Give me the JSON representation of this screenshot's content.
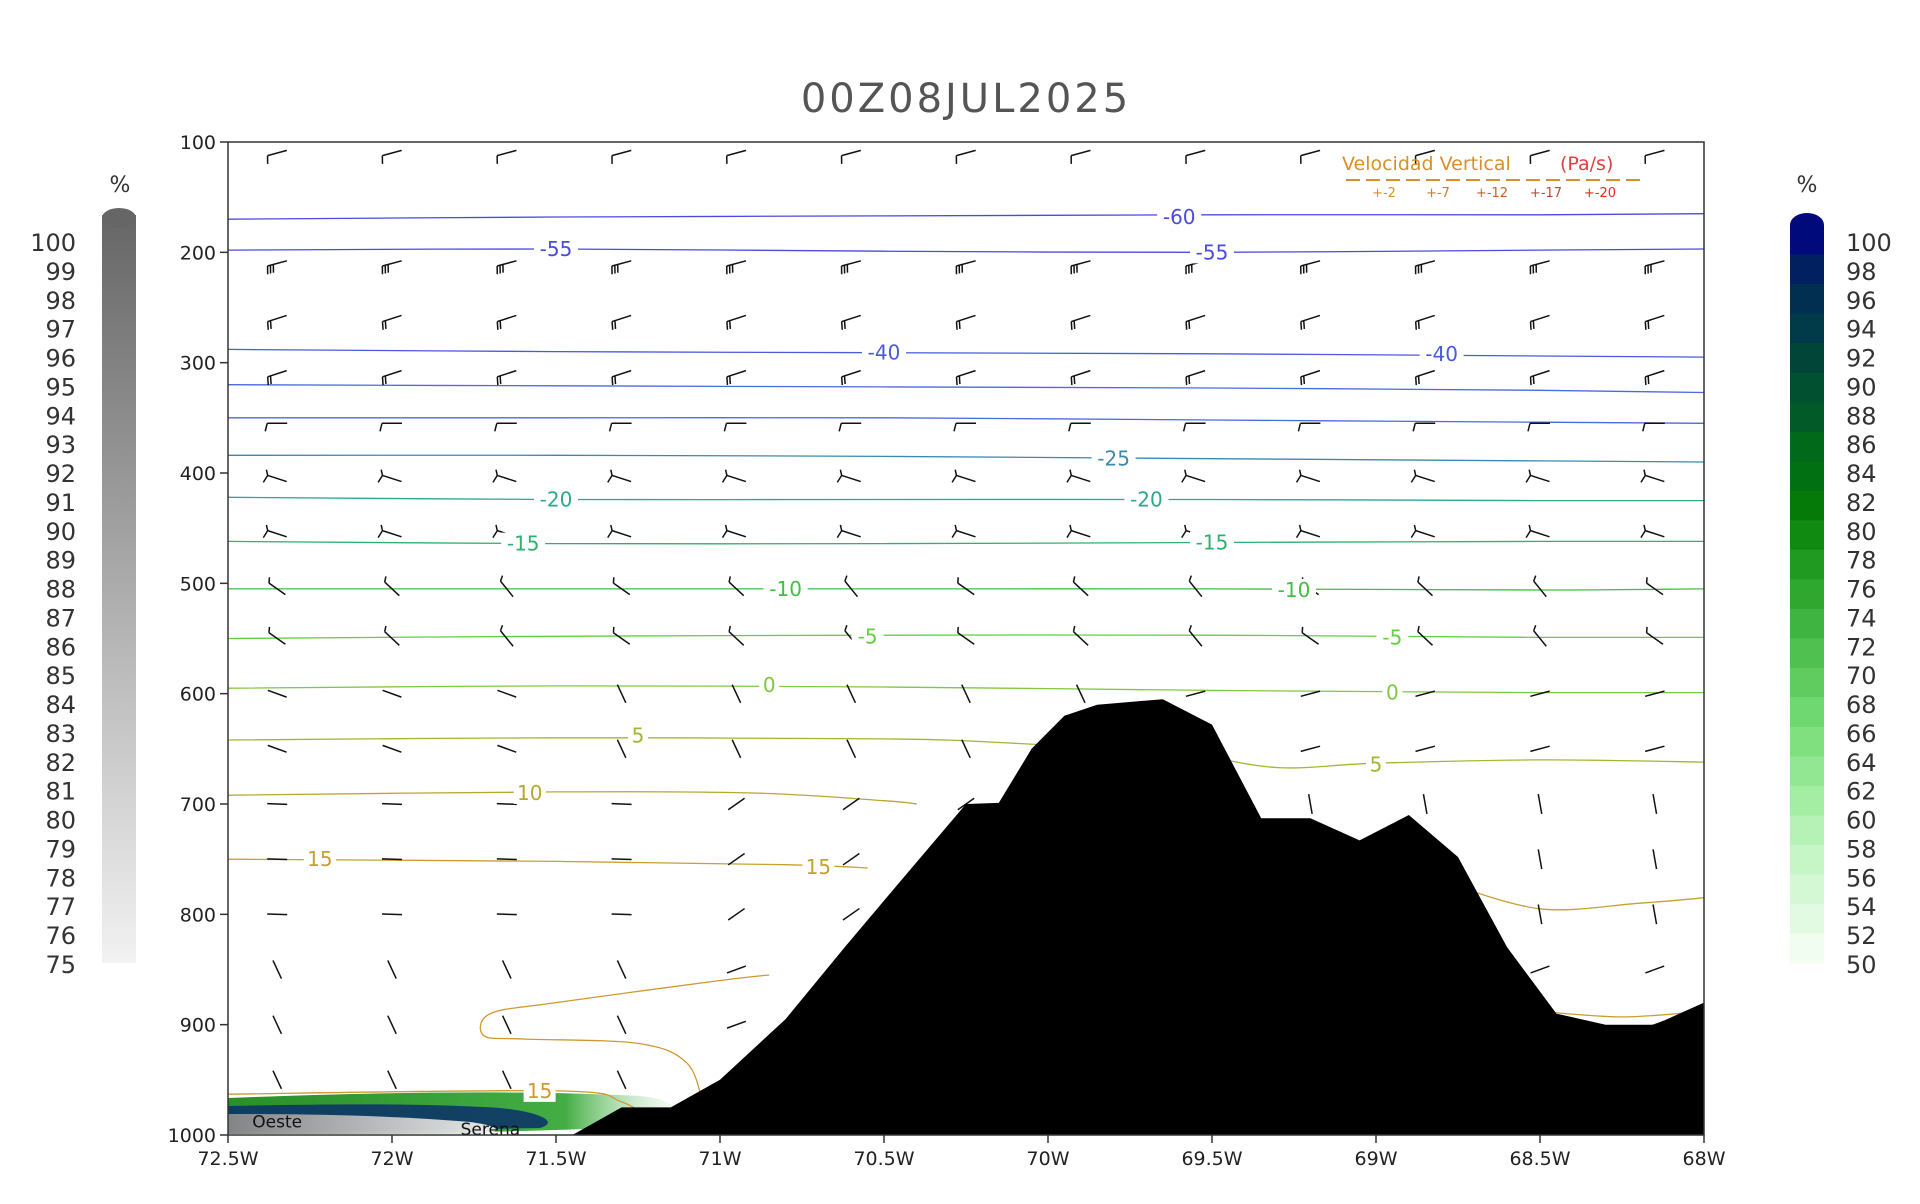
{
  "chart_data": {
    "type": "contour",
    "title": "00Z08JUL2025",
    "x_ticks": [
      "72.5W",
      "72W",
      "71.5W",
      "71W",
      "70.5W",
      "70W",
      "69.5W",
      "69W",
      "68.5W",
      "68W"
    ],
    "x_range": [
      -72.5,
      -68
    ],
    "y_ticks": [
      100,
      200,
      300,
      400,
      500,
      600,
      700,
      800,
      900,
      1000
    ],
    "y_range": [
      100,
      1000
    ],
    "y_inverted": true,
    "grid": false,
    "temperature_contours": [
      {
        "label": "-60",
        "color": "#4a4ae0",
        "points": [
          [
            -72.5,
            170
          ],
          [
            -71.5,
            168
          ],
          [
            -70.5,
            167
          ],
          [
            -69.5,
            166
          ],
          [
            -68.5,
            166
          ],
          [
            -68,
            165
          ]
        ],
        "label_positions": [
          [
            -69.6,
            168
          ]
        ]
      },
      {
        "label": "-55",
        "color": "#4a4ae0",
        "points": [
          [
            -72.5,
            198
          ],
          [
            -71.5,
            197
          ],
          [
            -70.5,
            199
          ],
          [
            -69.5,
            200
          ],
          [
            -68.5,
            198
          ],
          [
            -68,
            197
          ]
        ],
        "label_positions": [
          [
            -71.5,
            197
          ],
          [
            -69.5,
            200
          ]
        ]
      },
      {
        "label": "-40",
        "color": "#4a5ae0",
        "points": [
          [
            -72.5,
            288
          ],
          [
            -71.5,
            290
          ],
          [
            -70.5,
            291
          ],
          [
            -69.5,
            292
          ],
          [
            -68.5,
            294
          ],
          [
            -68,
            295
          ]
        ],
        "label_positions": [
          [
            -70.5,
            291
          ],
          [
            -68.8,
            292
          ]
        ]
      },
      {
        "label": "",
        "color": "#4a6ae0",
        "points": [
          [
            -72.5,
            320
          ],
          [
            -71.5,
            321
          ],
          [
            -70.5,
            322
          ],
          [
            -69.5,
            323
          ],
          [
            -68.5,
            325
          ],
          [
            -68,
            327
          ]
        ],
        "label_positions": []
      },
      {
        "label": "",
        "color": "#4a6ae0",
        "points": [
          [
            -72.5,
            350
          ],
          [
            -71.5,
            350
          ],
          [
            -70.5,
            350
          ],
          [
            -69.5,
            352
          ],
          [
            -68.5,
            354
          ],
          [
            -68,
            355
          ]
        ],
        "label_positions": []
      },
      {
        "label": "-25",
        "color": "#3a8ab0",
        "points": [
          [
            -72.5,
            384
          ],
          [
            -71.5,
            384
          ],
          [
            -70.5,
            385
          ],
          [
            -69.5,
            387
          ],
          [
            -68.5,
            389
          ],
          [
            -68,
            390
          ]
        ],
        "label_positions": [
          [
            -69.8,
            387
          ]
        ]
      },
      {
        "label": "-20",
        "color": "#2aa890",
        "points": [
          [
            -72.5,
            422
          ],
          [
            -71.5,
            424
          ],
          [
            -70.5,
            424
          ],
          [
            -69.5,
            424
          ],
          [
            -68.5,
            425
          ],
          [
            -68,
            425
          ]
        ],
        "label_positions": [
          [
            -71.5,
            424
          ],
          [
            -69.7,
            424
          ]
        ]
      },
      {
        "label": "-15",
        "color": "#30b070",
        "points": [
          [
            -72.5,
            462
          ],
          [
            -71.5,
            464
          ],
          [
            -70.5,
            464
          ],
          [
            -69.5,
            463
          ],
          [
            -68.5,
            462
          ],
          [
            -68,
            462
          ]
        ],
        "label_positions": [
          [
            -71.6,
            464
          ],
          [
            -69.5,
            463
          ]
        ]
      },
      {
        "label": "-10",
        "color": "#40c040",
        "points": [
          [
            -72.5,
            505
          ],
          [
            -71.5,
            505
          ],
          [
            -70.5,
            505
          ],
          [
            -69.5,
            505
          ],
          [
            -68.5,
            506
          ],
          [
            -68,
            505
          ]
        ],
        "label_positions": [
          [
            -70.8,
            505
          ],
          [
            -69.25,
            506
          ]
        ]
      },
      {
        "label": "-5",
        "color": "#60d040",
        "points": [
          [
            -72.5,
            550
          ],
          [
            -71.5,
            548
          ],
          [
            -70.5,
            547
          ],
          [
            -69.5,
            547
          ],
          [
            -68.5,
            549
          ],
          [
            -68,
            549
          ]
        ],
        "label_positions": [
          [
            -70.55,
            548
          ],
          [
            -68.95,
            549
          ]
        ]
      },
      {
        "label": "0",
        "color": "#80c840",
        "points": [
          [
            -72.5,
            595
          ],
          [
            -71.5,
            593
          ],
          [
            -70.5,
            594
          ],
          [
            -69.5,
            597
          ],
          [
            -68.5,
            599
          ],
          [
            -68,
            599
          ]
        ],
        "label_positions": [
          [
            -70.85,
            592
          ],
          [
            -68.95,
            599
          ]
        ]
      },
      {
        "label": "5",
        "color": "#a0b830",
        "points": [
          [
            -72.5,
            642
          ],
          [
            -71.5,
            640
          ],
          [
            -70.5,
            641
          ],
          [
            -70.1,
            645
          ],
          [
            -69.6,
            654
          ],
          [
            -69.3,
            667
          ],
          [
            -69.0,
            663
          ],
          [
            -68.5,
            660
          ],
          [
            -68,
            662
          ]
        ],
        "label_positions": [
          [
            -71.25,
            638
          ],
          [
            -69.0,
            664
          ]
        ]
      },
      {
        "label": "10",
        "color": "#b8a830",
        "points": [
          [
            -72.5,
            692
          ],
          [
            -71.5,
            689
          ],
          [
            -70.9,
            690
          ],
          [
            -70.5,
            697
          ],
          [
            -70.4,
            700
          ]
        ],
        "label_positions": [
          [
            -71.58,
            690
          ]
        ]
      },
      {
        "label": "15",
        "color": "#c8a030",
        "points": [
          [
            -72.5,
            750
          ],
          [
            -71.5,
            752
          ],
          [
            -70.8,
            755
          ],
          [
            -70.55,
            758
          ]
        ],
        "label_positions": [
          [
            -72.22,
            750
          ],
          [
            -70.7,
            757
          ]
        ]
      },
      {
        "label": "",
        "color": "#c8a030",
        "points": [
          [
            -68.8,
            770
          ],
          [
            -68.5,
            795
          ],
          [
            -68.2,
            790
          ],
          [
            -68,
            785
          ]
        ],
        "label_positions": []
      },
      {
        "label": "",
        "color": "#c8a030",
        "points": [
          [
            -68.5,
            888
          ],
          [
            -68.25,
            893
          ],
          [
            -68,
            888
          ]
        ],
        "label_positions": []
      },
      {
        "label": "",
        "color": "#d09830",
        "points": [
          [
            -70.85,
            855
          ],
          [
            -71.0,
            860
          ],
          [
            -71.5,
            880
          ],
          [
            -71.7,
            890
          ],
          [
            -71.72,
            910
          ],
          [
            -71.6,
            913
          ],
          [
            -71.25,
            917
          ],
          [
            -71.1,
            935
          ],
          [
            -71.05,
            975
          ]
        ],
        "label_positions": []
      },
      {
        "label": "15",
        "color": "#d09830",
        "points": [
          [
            -72.5,
            963
          ],
          [
            -71.5,
            960
          ],
          [
            -71.3,
            970
          ],
          [
            -71.2,
            990
          ]
        ],
        "label_positions": [
          [
            -71.55,
            960
          ]
        ]
      }
    ],
    "terrain_profile": [
      [
        -72.5,
        1000
      ],
      [
        -71.45,
        1000
      ],
      [
        -71.3,
        975
      ],
      [
        -71.15,
        975
      ],
      [
        -71.0,
        950
      ],
      [
        -70.8,
        895
      ],
      [
        -70.62,
        830
      ],
      [
        -70.45,
        770
      ],
      [
        -70.25,
        700
      ],
      [
        -70.15,
        699
      ],
      [
        -70.05,
        650
      ],
      [
        -69.95,
        620
      ],
      [
        -69.85,
        610
      ],
      [
        -69.65,
        605
      ],
      [
        -69.5,
        628
      ],
      [
        -69.35,
        713
      ],
      [
        -69.2,
        713
      ],
      [
        -69.05,
        733
      ],
      [
        -68.9,
        710
      ],
      [
        -68.75,
        748
      ],
      [
        -68.6,
        830
      ],
      [
        -68.45,
        890
      ],
      [
        -68.3,
        900
      ],
      [
        -68.15,
        900
      ],
      [
        -68,
        880
      ],
      [
        -68,
        1000
      ]
    ],
    "cross_section_labels": [
      {
        "text": "Oeste",
        "lon": -72.35,
        "p": 993
      },
      {
        "text": "Serena",
        "lon": -71.7,
        "p": 1000
      }
    ],
    "wind_barbs": {
      "lons": [
        -72.35,
        -72.0,
        -71.65,
        -71.3,
        -70.95,
        -70.6,
        -70.25,
        -69.9,
        -69.55,
        -69.2,
        -68.85,
        -68.5,
        -68.15
      ],
      "pressures": [
        110,
        210,
        260,
        310,
        355,
        405,
        455,
        505,
        550,
        600,
        650,
        700,
        750,
        800,
        850,
        900,
        950
      ]
    },
    "legend": {
      "title": "Velocidad Vertical",
      "unit": "(Pa/s)",
      "entries": [
        "+-2",
        "+-7",
        "+-12",
        "+-17",
        "+-20"
      ],
      "colors": [
        "#d8902a",
        "#d07a28",
        "#c86030",
        "#b84a38",
        "#e02828"
      ]
    },
    "colorbar_left": {
      "unit": "%",
      "labels": [
        "100",
        "99",
        "98",
        "97",
        "96",
        "95",
        "94",
        "93",
        "92",
        "91",
        "90",
        "89",
        "88",
        "87",
        "86",
        "85",
        "84",
        "83",
        "82",
        "81",
        "80",
        "79",
        "78",
        "77",
        "76",
        "75"
      ],
      "color_top": "#666666",
      "color_bottom": "#f2f2f2"
    },
    "colorbar_right": {
      "unit": "%",
      "labels": [
        "100",
        "98",
        "96",
        "94",
        "92",
        "90",
        "88",
        "86",
        "84",
        "82",
        "80",
        "78",
        "76",
        "74",
        "72",
        "70",
        "68",
        "66",
        "64",
        "62",
        "60",
        "58",
        "56",
        "54",
        "52",
        "50"
      ],
      "colors": [
        "#000a7a",
        "#012060",
        "#012f52",
        "#013a48",
        "#014538",
        "#015030",
        "#015a28",
        "#016a1a",
        "#017012",
        "#057a08",
        "#108a10",
        "#209a20",
        "#30a830",
        "#40b440",
        "#50c050",
        "#60cc60",
        "#70d870",
        "#80e080",
        "#92e892",
        "#a4eea4",
        "#b6f2b6",
        "#c6f6c6",
        "#d4f8d4",
        "#e2fae2",
        "#f0fdf0"
      ]
    }
  }
}
